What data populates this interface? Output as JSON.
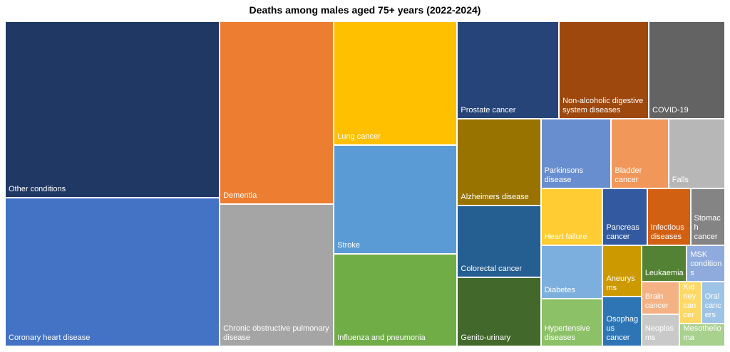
{
  "chart_data": {
    "type": "treemap",
    "title": "Deaths among males aged 75+ years (2022-2024)",
    "categories": [
      "Other conditions",
      "Coronary heart disease",
      "Dementia",
      "Chronic obstructive pulmonary disease",
      "Lung cancer",
      "Stroke",
      "Influenza and pneumonia",
      "Prostate cancer",
      "Non-alcoholic digestive system diseases",
      "COVID-19",
      "Alzheimers disease",
      "Colorectal cancer",
      "Genito-urinary",
      "Parkinsons disease",
      "Bladder cancer",
      "Falls",
      "Heart failure",
      "Diabetes",
      "Hypertensive diseases",
      "Pancreas cancer",
      "Infectious diseases",
      "Stomach cancer",
      "Aneurysms",
      "Osophagus cancer",
      "Leukaemia",
      "MSK conditions",
      "Brain cancer",
      "Neoplasms",
      "Kidney cancer",
      "Oral cancers",
      "Mesothelioma"
    ],
    "values": [
      746,
      629,
      411,
      320,
      301,
      265,
      225,
      196,
      173,
      147,
      142,
      119,
      113,
      96,
      78,
      77,
      70,
      65,
      58,
      50,
      49,
      39,
      39,
      38,
      32,
      27,
      25,
      24,
      18,
      20,
      20
    ],
    "colors": [
      "#203864",
      "#4472c4",
      "#ed7d31",
      "#a5a5a5",
      "#ffc000",
      "#5b9bd5",
      "#70ad47",
      "#264478",
      "#9e480e",
      "#636363",
      "#997300",
      "#255e91",
      "#43682b",
      "#698ed0",
      "#f1975a",
      "#b7b7b7",
      "#ffcd33",
      "#7cafdd",
      "#8cc168",
      "#335aa1",
      "#d26012",
      "#848484",
      "#cc9a00",
      "#2e75b6",
      "#548235",
      "#8faadc",
      "#f4b183",
      "#c9c9c9",
      "#ffd966",
      "#9dc3e6",
      "#a9d18e"
    ]
  }
}
